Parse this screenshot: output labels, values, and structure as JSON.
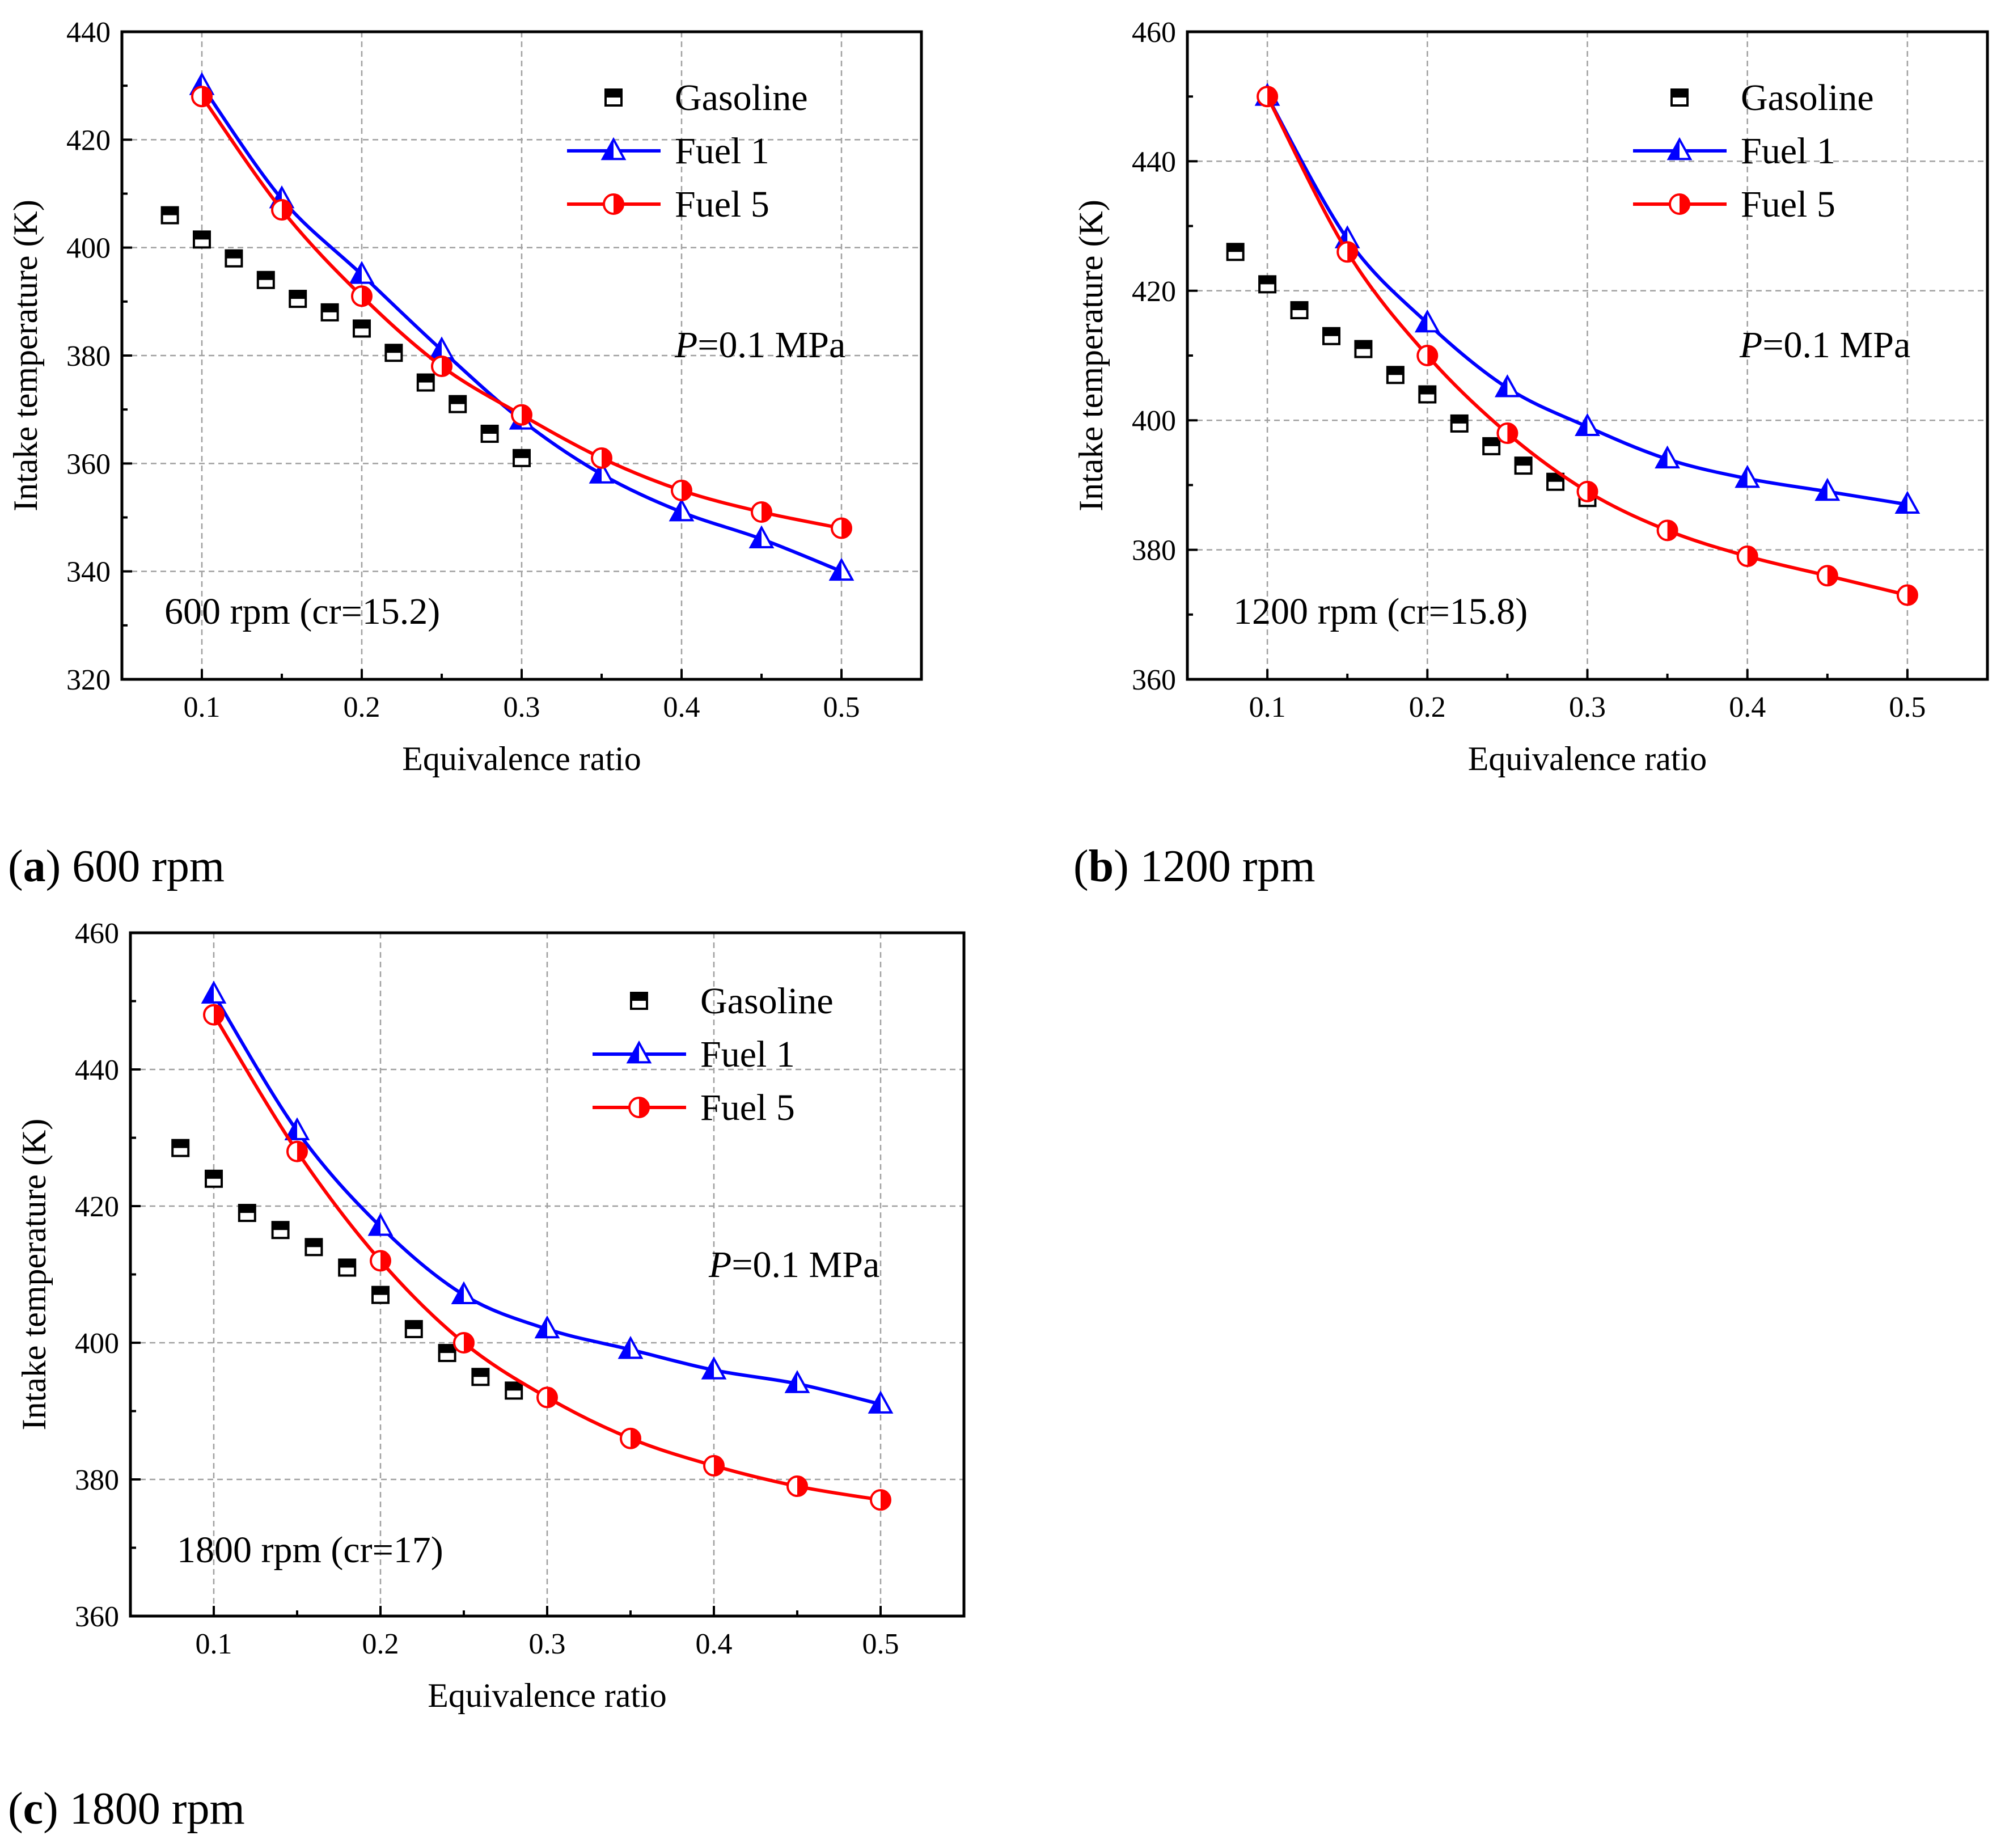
{
  "colors": {
    "gasoline": "#000000",
    "fuel1": "#0000ff",
    "fuel5": "#ff0000",
    "grid": "#a0a0a0"
  },
  "captions": [
    {
      "letter": "a",
      "text": "600 rpm"
    },
    {
      "letter": "b",
      "text": "1200 rpm"
    },
    {
      "letter": "c",
      "text": "1800 rpm"
    }
  ],
  "chart_data": [
    {
      "type": "line",
      "xlabel": "Equivalence ratio",
      "ylabel": "Intake temperature (K)",
      "xlim": [
        0.05,
        0.55
      ],
      "ylim": [
        320,
        440
      ],
      "xticks": [
        0.1,
        0.2,
        0.3,
        0.4,
        0.5
      ],
      "yticks": [
        320,
        340,
        360,
        380,
        400,
        420,
        440
      ],
      "xtick_labels": [
        "0.1",
        "0.2",
        "0.3",
        "0.4",
        "0.5"
      ],
      "ytick_labels": [
        "320",
        "340",
        "360",
        "380",
        "400",
        "420",
        "440"
      ],
      "grid": true,
      "legend_position": "top-right",
      "annotation_condition": {
        "var": "P",
        "rest": "=0.1 MPa"
      },
      "annotation_speed": "600 rpm (cr=15.2)",
      "series": [
        {
          "name": "Gasoline",
          "style": "scatter",
          "marker": "square-half",
          "x": [
            0.08,
            0.1,
            0.12,
            0.14,
            0.16,
            0.18,
            0.2,
            0.22,
            0.24,
            0.26,
            0.28,
            0.3
          ],
          "values": [
            406,
            401.5,
            398,
            394,
            390.5,
            388,
            385,
            380.5,
            375,
            371,
            365.5,
            361
          ]
        },
        {
          "name": "Fuel 1",
          "style": "line",
          "marker": "triangle-half",
          "x": [
            0.1,
            0.15,
            0.2,
            0.25,
            0.3,
            0.35,
            0.4,
            0.45,
            0.5
          ],
          "values": [
            430,
            409,
            395,
            381,
            368,
            358,
            351,
            346,
            340
          ]
        },
        {
          "name": "Fuel 5",
          "style": "line",
          "marker": "circle-half",
          "x": [
            0.1,
            0.15,
            0.2,
            0.25,
            0.3,
            0.35,
            0.4,
            0.45,
            0.5
          ],
          "values": [
            428,
            407,
            391,
            378,
            369,
            361,
            355,
            351,
            348
          ]
        }
      ]
    },
    {
      "type": "line",
      "xlabel": "Equivalence ratio",
      "ylabel": "Intake temperature (K)",
      "xlim": [
        0.05,
        0.55
      ],
      "ylim": [
        360,
        460
      ],
      "xticks": [
        0.1,
        0.2,
        0.3,
        0.4,
        0.5
      ],
      "yticks": [
        360,
        380,
        400,
        420,
        440,
        460
      ],
      "xtick_labels": [
        "0.1",
        "0.2",
        "0.3",
        "0.4",
        "0.5"
      ],
      "ytick_labels": [
        "360",
        "380",
        "400",
        "420",
        "440",
        "460"
      ],
      "grid": true,
      "legend_position": "top-right",
      "annotation_condition": {
        "var": "P",
        "rest": "=0.1 MPa"
      },
      "annotation_speed": "1200 rpm (cr=15.8)",
      "series": [
        {
          "name": "Gasoline",
          "style": "scatter",
          "marker": "square-half",
          "x": [
            0.08,
            0.1,
            0.12,
            0.14,
            0.16,
            0.18,
            0.2,
            0.22,
            0.24,
            0.26,
            0.28,
            0.3
          ],
          "values": [
            426,
            421,
            417,
            413,
            411,
            407,
            404,
            399.5,
            396,
            393,
            390.5,
            388
          ]
        },
        {
          "name": "Fuel 1",
          "style": "line",
          "marker": "triangle-half",
          "x": [
            0.1,
            0.15,
            0.2,
            0.25,
            0.3,
            0.35,
            0.4,
            0.45,
            0.5
          ],
          "values": [
            450,
            428,
            415,
            405,
            399,
            394,
            391,
            389,
            387
          ]
        },
        {
          "name": "Fuel 5",
          "style": "line",
          "marker": "circle-half",
          "x": [
            0.1,
            0.15,
            0.2,
            0.25,
            0.3,
            0.35,
            0.4,
            0.45,
            0.5
          ],
          "values": [
            450,
            426,
            410,
            398,
            389,
            383,
            379,
            376,
            373
          ]
        }
      ]
    },
    {
      "type": "line",
      "xlabel": "Equivalence ratio",
      "ylabel": "Intake temperature (K)",
      "xlim": [
        0.05,
        0.55
      ],
      "ylim": [
        360,
        460
      ],
      "xticks": [
        0.1,
        0.2,
        0.3,
        0.4,
        0.5
      ],
      "yticks": [
        360,
        380,
        400,
        420,
        440,
        460
      ],
      "xtick_labels": [
        "0.1",
        "0.2",
        "0.3",
        "0.4",
        "0.5"
      ],
      "ytick_labels": [
        "360",
        "380",
        "400",
        "420",
        "440",
        "460"
      ],
      "grid": true,
      "legend_position": "top-right",
      "annotation_condition": {
        "var": "P",
        "rest": "=0.1 MPa"
      },
      "annotation_speed": "1800 rpm (cr=17)",
      "series": [
        {
          "name": "Gasoline",
          "style": "scatter",
          "marker": "square-half",
          "x": [
            0.08,
            0.1,
            0.12,
            0.14,
            0.16,
            0.18,
            0.2,
            0.22,
            0.24,
            0.26,
            0.28
          ],
          "values": [
            428.5,
            424,
            419,
            416.5,
            414,
            411,
            407,
            402,
            398.5,
            395,
            393
          ]
        },
        {
          "name": "Fuel 1",
          "style": "line",
          "marker": "triangle-half",
          "x": [
            0.1,
            0.15,
            0.2,
            0.25,
            0.3,
            0.35,
            0.4,
            0.45,
            0.5
          ],
          "values": [
            451,
            431,
            417,
            407,
            402,
            399,
            396,
            394,
            391
          ]
        },
        {
          "name": "Fuel 5",
          "style": "line",
          "marker": "circle-half",
          "x": [
            0.1,
            0.15,
            0.2,
            0.25,
            0.3,
            0.35,
            0.4,
            0.45,
            0.5
          ],
          "values": [
            448,
            428,
            412,
            400,
            392,
            386,
            382,
            379,
            377
          ]
        }
      ]
    }
  ]
}
